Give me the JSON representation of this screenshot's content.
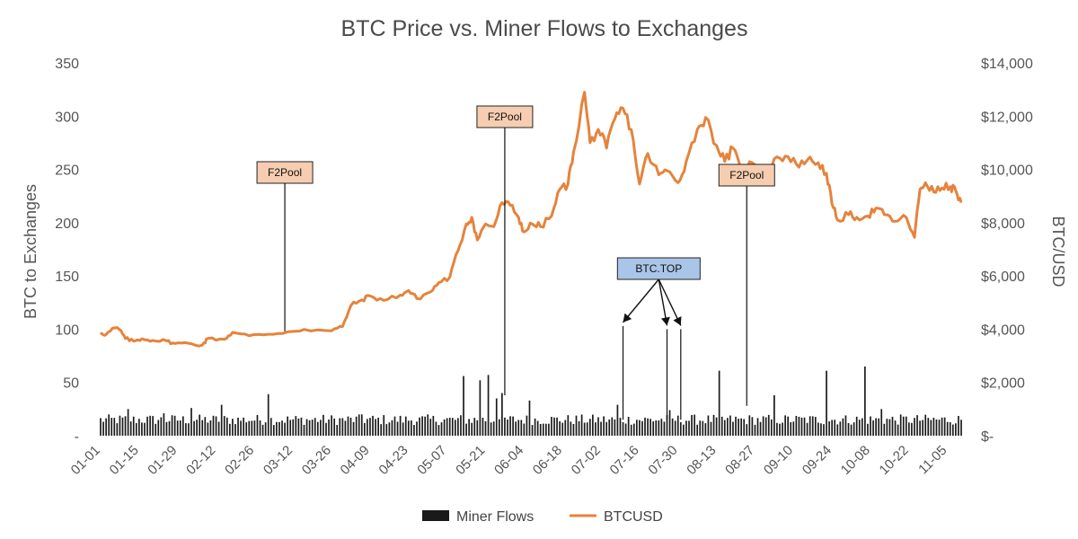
{
  "chart_data": {
    "type": "bar+line",
    "title": "BTC Price vs. Miner Flows to Exchanges",
    "ylabel_left": "BTC to Exchanges",
    "ylabel_right": "BTC/USD",
    "ylim_left": [
      0,
      350
    ],
    "ylim_right": [
      0,
      14000
    ],
    "yticks_left": [
      "-",
      "50",
      "100",
      "150",
      "200",
      "250",
      "300",
      "350"
    ],
    "yticks_right": [
      "$-",
      "$2,000",
      "$4,000",
      "$6,000",
      "$8,000",
      "$10,000",
      "$12,000",
      "$14,000"
    ],
    "x_start": "01-01",
    "x_end": "11-10",
    "xtick_labels": [
      "01-01",
      "01-15",
      "01-29",
      "02-12",
      "02-26",
      "03-12",
      "03-26",
      "04-09",
      "04-23",
      "05-07",
      "05-21",
      "06-04",
      "06-18",
      "07-02",
      "07-16",
      "07-30",
      "08-13",
      "08-27",
      "09-10",
      "09-24",
      "10-08",
      "10-22",
      "11-05"
    ],
    "legend": {
      "position": "bottom",
      "items": [
        "Miner Flows",
        "BTCUSD"
      ]
    },
    "colors": {
      "bars": "#1a1a1a",
      "line": "#e5833c",
      "f2pool_box": "#f6cdb0",
      "btctop_box": "#a9c5e8"
    },
    "series": [
      {
        "name": "BTCUSD",
        "kind": "line",
        "axis": "right",
        "points": [
          [
            "01-01",
            3870
          ],
          [
            "01-03",
            3800
          ],
          [
            "01-06",
            4050
          ],
          [
            "01-08",
            3980
          ],
          [
            "01-10",
            3650
          ],
          [
            "01-13",
            3550
          ],
          [
            "01-16",
            3640
          ],
          [
            "01-20",
            3580
          ],
          [
            "01-25",
            3560
          ],
          [
            "01-28",
            3460
          ],
          [
            "02-02",
            3470
          ],
          [
            "02-07",
            3400
          ],
          [
            "02-09",
            3650
          ],
          [
            "02-15",
            3620
          ],
          [
            "02-18",
            3880
          ],
          [
            "02-24",
            3750
          ],
          [
            "03-03",
            3810
          ],
          [
            "03-10",
            3900
          ],
          [
            "03-16",
            3990
          ],
          [
            "03-26",
            3940
          ],
          [
            "03-30",
            4100
          ],
          [
            "04-02",
            4880
          ],
          [
            "04-06",
            5100
          ],
          [
            "04-09",
            5250
          ],
          [
            "04-14",
            5080
          ],
          [
            "04-20",
            5280
          ],
          [
            "04-23",
            5450
          ],
          [
            "04-26",
            5150
          ],
          [
            "05-01",
            5400
          ],
          [
            "05-04",
            5750
          ],
          [
            "05-08",
            5950
          ],
          [
            "05-11",
            6950
          ],
          [
            "05-14",
            7950
          ],
          [
            "05-16",
            8200
          ],
          [
            "05-18",
            7350
          ],
          [
            "05-21",
            7950
          ],
          [
            "05-24",
            7850
          ],
          [
            "05-27",
            8750
          ],
          [
            "05-30",
            8650
          ],
          [
            "06-02",
            8200
          ],
          [
            "06-04",
            7650
          ],
          [
            "06-07",
            7950
          ],
          [
            "06-10",
            7850
          ],
          [
            "06-14",
            8250
          ],
          [
            "06-17",
            9250
          ],
          [
            "06-20",
            9450
          ],
          [
            "06-22",
            10650
          ],
          [
            "06-26",
            12900
          ],
          [
            "06-28",
            11000
          ],
          [
            "07-01",
            11500
          ],
          [
            "07-04",
            10800
          ],
          [
            "07-07",
            11900
          ],
          [
            "07-10",
            12300
          ],
          [
            "07-13",
            11500
          ],
          [
            "07-16",
            9450
          ],
          [
            "07-19",
            10600
          ],
          [
            "07-23",
            9800
          ],
          [
            "07-26",
            9950
          ],
          [
            "07-30",
            9500
          ],
          [
            "08-02",
            10300
          ],
          [
            "08-06",
            11500
          ],
          [
            "08-09",
            11950
          ],
          [
            "08-13",
            10900
          ],
          [
            "08-16",
            10300
          ],
          [
            "08-19",
            10800
          ],
          [
            "08-22",
            9900
          ],
          [
            "08-26",
            10250
          ],
          [
            "08-30",
            9600
          ],
          [
            "09-03",
            10400
          ],
          [
            "09-07",
            10500
          ],
          [
            "09-11",
            10200
          ],
          [
            "09-15",
            10350
          ],
          [
            "09-19",
            10250
          ],
          [
            "09-22",
            9850
          ],
          [
            "09-24",
            8700
          ],
          [
            "09-26",
            8100
          ],
          [
            "09-30",
            8300
          ],
          [
            "10-03",
            8200
          ],
          [
            "10-07",
            8250
          ],
          [
            "10-10",
            8550
          ],
          [
            "10-13",
            8300
          ],
          [
            "10-17",
            8050
          ],
          [
            "10-21",
            8200
          ],
          [
            "10-24",
            7450
          ],
          [
            "10-26",
            9250
          ],
          [
            "10-28",
            9500
          ],
          [
            "10-31",
            9150
          ],
          [
            "11-03",
            9300
          ],
          [
            "11-06",
            9350
          ],
          [
            "11-08",
            9200
          ],
          [
            "11-10",
            8750
          ]
        ]
      },
      {
        "name": "Miner Flows",
        "kind": "bar",
        "axis": "left",
        "baseline": 15,
        "spikes": [
          [
            "01-11",
            25
          ],
          [
            "01-24",
            21
          ],
          [
            "02-03",
            26
          ],
          [
            "02-14",
            29
          ],
          [
            "03-03",
            39
          ],
          [
            "04-06",
            20
          ],
          [
            "05-13",
            56
          ],
          [
            "05-19",
            52
          ],
          [
            "05-22",
            57
          ],
          [
            "05-25",
            35
          ],
          [
            "05-27",
            40
          ],
          [
            "06-06",
            33
          ],
          [
            "07-08",
            29
          ],
          [
            "07-27",
            24
          ],
          [
            "08-14",
            61
          ],
          [
            "09-03",
            38
          ],
          [
            "09-22",
            61
          ],
          [
            "10-06",
            65
          ],
          [
            "10-12",
            25
          ]
        ]
      }
    ],
    "annotations": [
      {
        "label": "F2Pool",
        "style": "f2pool",
        "date": "03-09",
        "tip": 98
      },
      {
        "label": "F2Pool",
        "style": "f2pool",
        "date": "05-28",
        "tip": 38
      },
      {
        "label": "F2Pool",
        "style": "f2pool",
        "date": "08-24",
        "tip": 28
      },
      {
        "label": "BTC.TOP",
        "style": "btctop",
        "date": "07-10",
        "tip": 103,
        "targets": [
          "07-10",
          "07-26",
          "07-31"
        ]
      }
    ]
  }
}
